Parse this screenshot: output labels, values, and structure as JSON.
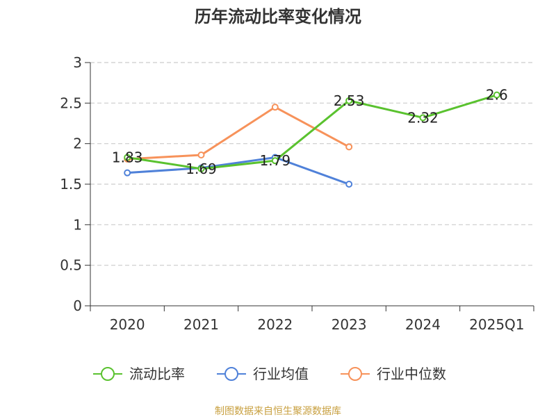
{
  "chart_data": {
    "type": "line",
    "title": "历年流动比率变化情况",
    "categories": [
      "2020",
      "2021",
      "2022",
      "2023",
      "2024",
      "2025Q1"
    ],
    "ylim": [
      0,
      3
    ],
    "yticks": [
      "0",
      "0.5",
      "1",
      "1.5",
      "2",
      "2.5",
      "3"
    ],
    "grid": true,
    "legend_position": "bottom",
    "series": [
      {
        "name": "流动比率",
        "color": "#5ac22f",
        "values": [
          1.83,
          1.69,
          1.79,
          2.53,
          2.32,
          2.6
        ],
        "labels": [
          "1.83",
          "1.69",
          "1.79",
          "2.53",
          "2.32",
          "2.6"
        ]
      },
      {
        "name": "行业均值",
        "color": "#4f81d9",
        "values": [
          1.64,
          1.7,
          1.83,
          1.5,
          null,
          null
        ]
      },
      {
        "name": "行业中位数",
        "color": "#f7925a",
        "values": [
          1.81,
          1.86,
          2.45,
          1.96,
          null,
          null
        ]
      }
    ]
  },
  "footer": {
    "source": "制图数据来自恒生聚源数据库",
    "source_color": "#c8a040"
  }
}
